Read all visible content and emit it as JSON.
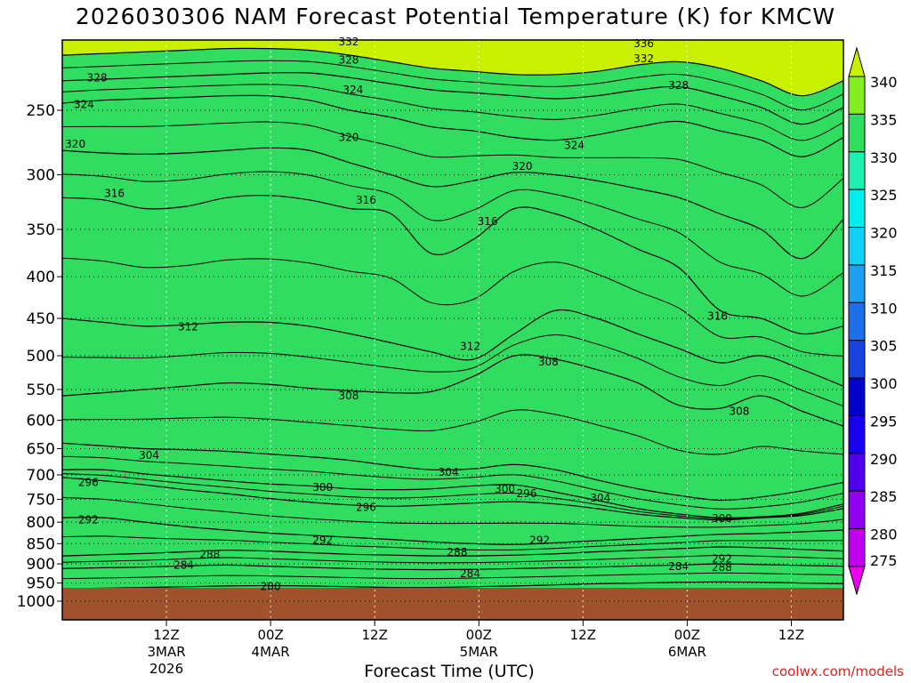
{
  "chart_data": {
    "type": "heatmap",
    "title": "2026030306 NAM Forecast Potential Temperature (K) for KMCW",
    "xlabel": "Forecast Time (UTC)",
    "ylabel": "",
    "credit": "coolwx.com/models",
    "y_axis": {
      "ticks": [
        250,
        300,
        350,
        400,
        450,
        500,
        550,
        600,
        650,
        700,
        750,
        800,
        850,
        900,
        950,
        1000
      ],
      "scale": "log",
      "range": [
        1000,
        200
      ]
    },
    "x_axis": {
      "range_hours": [
        -6,
        84
      ],
      "ticks": [
        {
          "hour": 6,
          "l1": "12Z",
          "l2": "3MAR",
          "l3": "2026"
        },
        {
          "hour": 18,
          "l1": "00Z",
          "l2": "4MAR",
          "l3": ""
        },
        {
          "hour": 30,
          "l1": "12Z",
          "l2": "",
          "l3": ""
        },
        {
          "hour": 42,
          "l1": "00Z",
          "l2": "5MAR",
          "l3": ""
        },
        {
          "hour": 54,
          "l1": "12Z",
          "l2": "",
          "l3": ""
        },
        {
          "hour": 66,
          "l1": "00Z",
          "l2": "6MAR",
          "l3": ""
        },
        {
          "hour": 78,
          "l1": "12Z",
          "l2": "",
          "l3": ""
        }
      ]
    },
    "colorbar": {
      "levels": [
        275,
        280,
        285,
        290,
        295,
        300,
        305,
        310,
        315,
        320,
        325,
        330,
        335,
        340
      ],
      "colors": [
        "#ee00ee",
        "#c000ee",
        "#9000ee",
        "#5000ee",
        "#1800ee",
        "#0000cc",
        "#1a44e0",
        "#1e70e8",
        "#1ea0f0",
        "#10d0f8",
        "#00eeee",
        "#20eeb0",
        "#30dd60",
        "#80ee20",
        "#c8f000"
      ]
    },
    "series": [
      {
        "name": "280 K isentrope",
        "values": [
          965,
          964,
          962,
          960,
          958,
          957,
          958,
          960,
          962,
          962,
          960,
          958,
          955,
          952,
          950,
          948,
          947,
          948,
          950,
          952
        ]
      },
      {
        "name": "284 K isentrope",
        "values": [
          912,
          910,
          908,
          905,
          903,
          906,
          909,
          912,
          914,
          915,
          914,
          912,
          910,
          908,
          905,
          903,
          900,
          902,
          904,
          906
        ]
      },
      {
        "name": "288 K isentrope",
        "values": [
          880,
          877,
          874,
          870,
          866,
          868,
          872,
          876,
          878,
          880,
          880,
          878,
          875,
          870,
          866,
          862,
          858,
          860,
          864,
          868
        ]
      },
      {
        "name": "292 K isentrope",
        "values": [
          790,
          790,
          800,
          810,
          818,
          825,
          830,
          835,
          840,
          846,
          850,
          852,
          848,
          843,
          838,
          833,
          828,
          826,
          822,
          818
        ]
      },
      {
        "name": "296 K isentrope",
        "values": [
          705,
          712,
          720,
          730,
          738,
          748,
          756,
          762,
          765,
          762,
          758,
          755,
          760,
          770,
          782,
          790,
          795,
          790,
          785,
          770
        ]
      },
      {
        "name": "300 K isentrope",
        "values": [
          690,
          690,
          698,
          705,
          712,
          718,
          722,
          728,
          730,
          728,
          722,
          720,
          735,
          752,
          770,
          782,
          790,
          788,
          780,
          760
        ]
      },
      {
        "name": "304 K isentrope",
        "values": [
          640,
          645,
          650,
          652,
          655,
          660,
          665,
          672,
          682,
          690,
          688,
          680,
          690,
          710,
          728,
          742,
          752,
          745,
          732,
          715
        ]
      },
      {
        "name": "308 K isentrope",
        "values": [
          560,
          555,
          550,
          545,
          540,
          542,
          548,
          552,
          555,
          553,
          530,
          500,
          505,
          520,
          540,
          575,
          580,
          560,
          585,
          610
        ]
      },
      {
        "name": "312 K isentrope",
        "values": [
          450,
          455,
          460,
          458,
          455,
          455,
          460,
          470,
          482,
          495,
          505,
          470,
          440,
          450,
          470,
          490,
          510,
          500,
          520,
          545
        ]
      },
      {
        "name": "316 K isentrope",
        "values": [
          320,
          322,
          330,
          328,
          320,
          318,
          322,
          330,
          335,
          375,
          360,
          330,
          335,
          350,
          370,
          390,
          440,
          450,
          470,
          460
        ]
      },
      {
        "name": "320 K isentrope",
        "values": [
          280,
          282,
          283,
          282,
          280,
          278,
          280,
          290,
          300,
          310,
          305,
          298,
          300,
          305,
          312,
          320,
          335,
          350,
          380,
          340
        ]
      },
      {
        "name": "324 K isentrope",
        "values": [
          245,
          243,
          242,
          241,
          240,
          240,
          243,
          250,
          255,
          262,
          265,
          270,
          272,
          268,
          262,
          258,
          265,
          272,
          285,
          270
        ]
      },
      {
        "name": "328 K isentrope",
        "values": [
          230,
          229,
          228,
          227,
          226,
          225,
          225,
          228,
          232,
          236,
          238,
          240,
          242,
          240,
          236,
          234,
          240,
          248,
          260,
          248
        ]
      },
      {
        "name": "332 K isentrope",
        "values": [
          214,
          213,
          212,
          211,
          210,
          210,
          211,
          214,
          218,
          222,
          224,
          226,
          226,
          224,
          220,
          218,
          222,
          230,
          240,
          230
        ]
      }
    ],
    "contour_labels": [
      {
        "text": "332",
        "hour": 27,
        "p": 206
      },
      {
        "text": "328",
        "hour": 27,
        "p": 217
      },
      {
        "text": "336",
        "hour": 61,
        "p": 207
      },
      {
        "text": "332",
        "hour": 61,
        "p": 216
      },
      {
        "text": "328",
        "hour": -2,
        "p": 228
      },
      {
        "text": "324",
        "hour": 27.5,
        "p": 236
      },
      {
        "text": "328",
        "hour": 65,
        "p": 233
      },
      {
        "text": "324",
        "hour": -3.5,
        "p": 246
      },
      {
        "text": "320",
        "hour": -4.5,
        "p": 275
      },
      {
        "text": "320",
        "hour": 27,
        "p": 270
      },
      {
        "text": "324",
        "hour": 53,
        "p": 276
      },
      {
        "text": "320",
        "hour": 47,
        "p": 293
      },
      {
        "text": "316",
        "hour": 0,
        "p": 316
      },
      {
        "text": "316",
        "hour": 29,
        "p": 322
      },
      {
        "text": "316",
        "hour": 43,
        "p": 342
      },
      {
        "text": "316",
        "hour": 69.5,
        "p": 447
      },
      {
        "text": "312",
        "hour": 8.5,
        "p": 461
      },
      {
        "text": "312",
        "hour": 41,
        "p": 487
      },
      {
        "text": "308",
        "hour": 50,
        "p": 509
      },
      {
        "text": "308",
        "hour": 27,
        "p": 560
      },
      {
        "text": "308",
        "hour": 72,
        "p": 585
      },
      {
        "text": "304",
        "hour": 4,
        "p": 662
      },
      {
        "text": "304",
        "hour": 38.5,
        "p": 695
      },
      {
        "text": "304",
        "hour": 56,
        "p": 747
      },
      {
        "text": "296",
        "hour": -3,
        "p": 715
      },
      {
        "text": "300",
        "hour": 24,
        "p": 725
      },
      {
        "text": "300",
        "hour": 45,
        "p": 729
      },
      {
        "text": "296",
        "hour": 47.5,
        "p": 738
      },
      {
        "text": "296",
        "hour": 29,
        "p": 767
      },
      {
        "text": "300",
        "hour": 70,
        "p": 792
      },
      {
        "text": "292",
        "hour": -3,
        "p": 795
      },
      {
        "text": "292",
        "hour": 24,
        "p": 842
      },
      {
        "text": "292",
        "hour": 49,
        "p": 842
      },
      {
        "text": "288",
        "hour": 11,
        "p": 876
      },
      {
        "text": "288",
        "hour": 39.5,
        "p": 871
      },
      {
        "text": "292",
        "hour": 70,
        "p": 887
      },
      {
        "text": "288",
        "hour": 70,
        "p": 909
      },
      {
        "text": "284",
        "hour": 65,
        "p": 907
      },
      {
        "text": "284",
        "hour": 8,
        "p": 903
      },
      {
        "text": "284",
        "hour": 41,
        "p": 925
      },
      {
        "text": "280",
        "hour": 18,
        "p": 959
      }
    ],
    "ground_color": "#a0522d"
  }
}
